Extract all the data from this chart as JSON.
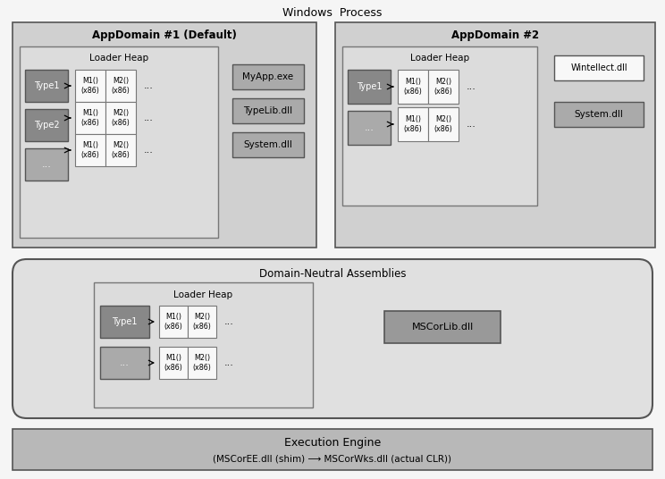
{
  "title": "Windows  Process",
  "bg_color": "#f5f5f5",
  "appdomain1_title": "AppDomain #1 (Default)",
  "appdomain2_title": "AppDomain #2",
  "domain_neutral_title": "Domain-Neutral Assemblies",
  "loader_heap_title": "Loader Heap",
  "execution_engine_line1": "Execution Engine",
  "execution_engine_line2": "(MSCorEE.dll (shim) ⟶ MSCorWks.dll (actual CLR))",
  "myapp_label": "MyApp.exe",
  "typelib_label": "TypeLib.dll",
  "system_label": "System.dll",
  "wintellect_label": "Wintellect.dll",
  "system2_label": "System.dll",
  "mscorlib_label": "MSCorLib.dll",
  "type1_label": "Type1",
  "type2_label": "Type2",
  "dots": "...",
  "m10_x86": "M1()\n(x86)",
  "m20_x86": "M2()\n(x86)",
  "color_outer_box": "#d0d0d0",
  "color_loader_box": "#dcdcdc",
  "color_type_dark": "#888888",
  "color_type_mid": "#aaaaaa",
  "color_dll_box": "#aaaaaa",
  "color_mscor_box": "#999999",
  "color_meth_box": "#f8f8f8",
  "color_dna_box": "#e0e0e0",
  "color_exe_bar": "#b8b8b8",
  "color_ec_dark": "#555555",
  "color_ec_med": "#777777",
  "color_white": "#ffffff"
}
